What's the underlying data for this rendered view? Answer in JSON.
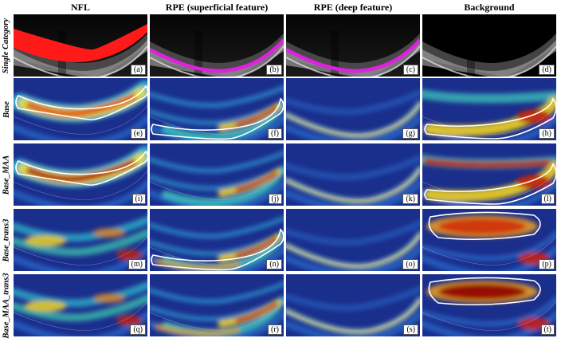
{
  "columns": [
    "NFL",
    "RPE (superficial feature)",
    "RPE (deep feature)",
    "Background"
  ],
  "rows": [
    {
      "label": "Single Category",
      "type": "oct",
      "panels": [
        {
          "tag": "(a)",
          "overlay": "nfl"
        },
        {
          "tag": "(b)",
          "overlay": "rpe"
        },
        {
          "tag": "(c)",
          "overlay": "rpe"
        },
        {
          "tag": "(d)",
          "overlay": "bg"
        }
      ]
    },
    {
      "label": "Base",
      "type": "heat",
      "panels": [
        {
          "tag": "(e)",
          "heat": "nfl",
          "contour": "nfl"
        },
        {
          "tag": "(f)",
          "heat": "rpe-sup-right",
          "contour": "rpe-low"
        },
        {
          "tag": "(g)",
          "heat": "rpe-deep",
          "contour": ""
        },
        {
          "tag": "(h)",
          "heat": "bg-lowright",
          "contour": "bg-low"
        }
      ]
    },
    {
      "label": "Base_MAA",
      "type": "heat",
      "panels": [
        {
          "tag": "(i)",
          "heat": "nfl-strong",
          "contour": "nfl"
        },
        {
          "tag": "(j)",
          "heat": "rpe-sup-right",
          "contour": ""
        },
        {
          "tag": "(k)",
          "heat": "rpe-deep",
          "contour": ""
        },
        {
          "tag": "(l)",
          "heat": "bg-top-low",
          "contour": "bg-low"
        }
      ]
    },
    {
      "label": "Base_trans3",
      "type": "heat",
      "panels": [
        {
          "tag": "(m)",
          "heat": "nfl-patchy",
          "contour": ""
        },
        {
          "tag": "(n)",
          "heat": "rpe-sup-full",
          "contour": "rpe-low"
        },
        {
          "tag": "(o)",
          "heat": "rpe-deep",
          "contour": ""
        },
        {
          "tag": "(p)",
          "heat": "bg-top",
          "contour": "bg-top"
        }
      ]
    },
    {
      "label": "Base_MAA_trans3",
      "type": "heat",
      "panels": [
        {
          "tag": "(q)",
          "heat": "nfl-patchy",
          "contour": ""
        },
        {
          "tag": "(r)",
          "heat": "rpe-sup-full",
          "contour": ""
        },
        {
          "tag": "(s)",
          "heat": "rpe-deep",
          "contour": ""
        },
        {
          "tag": "(t)",
          "heat": "bg-top-strong",
          "contour": "bg-top"
        }
      ]
    }
  ],
  "colors": {
    "nfl_overlay": "#ff1a1a",
    "rpe_overlay": "#e020e0",
    "contour": "#ffffff",
    "heat_low": "#1a2e8c",
    "heat_high": "#b00000"
  }
}
